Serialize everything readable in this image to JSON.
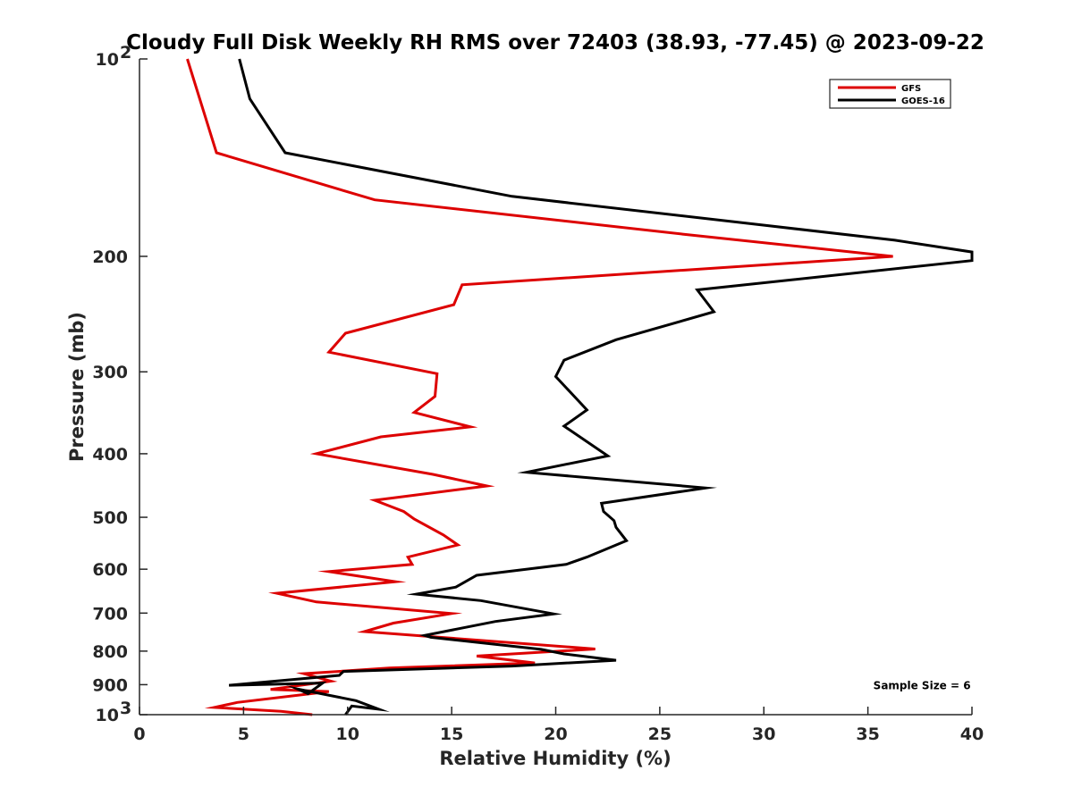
{
  "chart_data": {
    "type": "line",
    "title": "Cloudy Full Disk Weekly RH RMS over 72403 (38.93, -77.45) @ 2023-09-22",
    "xlabel": "Relative Humidity (%)",
    "ylabel": "Pressure (mb)",
    "xlim": [
      0,
      40
    ],
    "ylim": [
      100,
      1000
    ],
    "y_scale": "log",
    "y_reversed": true,
    "x_ticks": [
      {
        "value": 0,
        "label": "0"
      },
      {
        "value": 5,
        "label": "5"
      },
      {
        "value": 10,
        "label": "10"
      },
      {
        "value": 15,
        "label": "15"
      },
      {
        "value": 20,
        "label": "20"
      },
      {
        "value": 25,
        "label": "25"
      },
      {
        "value": 30,
        "label": "30"
      },
      {
        "value": 35,
        "label": "35"
      },
      {
        "value": 40,
        "label": "40"
      }
    ],
    "y_ticks": [
      {
        "value": 100,
        "label": "10",
        "sup": "2"
      },
      {
        "value": 200,
        "label": "200"
      },
      {
        "value": 300,
        "label": "300"
      },
      {
        "value": 400,
        "label": "400"
      },
      {
        "value": 500,
        "label": "500"
      },
      {
        "value": 600,
        "label": "600"
      },
      {
        "value": 700,
        "label": "700"
      },
      {
        "value": 800,
        "label": "800"
      },
      {
        "value": 900,
        "label": "900"
      },
      {
        "value": 1000,
        "label": "10",
        "sup": "3"
      }
    ],
    "grid": false,
    "legend_position": "top-right",
    "series": [
      {
        "name": "GFS",
        "color": "#dd0000",
        "points": [
          [
            2.3,
            100
          ],
          [
            3.7,
            139
          ],
          [
            11.3,
            164
          ],
          [
            26.1,
            185
          ],
          [
            36.2,
            200
          ],
          [
            15.5,
            221
          ],
          [
            15.1,
            237
          ],
          [
            9.9,
            262
          ],
          [
            9.1,
            280
          ],
          [
            14.3,
            302
          ],
          [
            14.2,
            327
          ],
          [
            13.2,
            346
          ],
          [
            15.9,
            364
          ],
          [
            11.6,
            377
          ],
          [
            8.5,
            400
          ],
          [
            14.1,
            430
          ],
          [
            16.7,
            448
          ],
          [
            11.3,
            471
          ],
          [
            12.7,
            490
          ],
          [
            13.2,
            503
          ],
          [
            14.6,
            532
          ],
          [
            15.3,
            551
          ],
          [
            12.9,
            575
          ],
          [
            13.1,
            590
          ],
          [
            9.1,
            605
          ],
          [
            12.3,
            627
          ],
          [
            6.6,
            653
          ],
          [
            8.5,
            673
          ],
          [
            15.0,
            701
          ],
          [
            12.2,
            725
          ],
          [
            10.8,
            747
          ],
          [
            21.9,
            794
          ],
          [
            16.2,
            814
          ],
          [
            19.0,
            834
          ],
          [
            12.0,
            849
          ],
          [
            7.9,
            866
          ],
          [
            9.2,
            889
          ],
          [
            6.3,
            915
          ],
          [
            9.1,
            922
          ],
          [
            4.7,
            958
          ],
          [
            3.6,
            975
          ],
          [
            6.8,
            988
          ],
          [
            8.3,
            1000
          ]
        ]
      },
      {
        "name": "GOES-16",
        "color": "#000000",
        "points": [
          [
            4.8,
            100
          ],
          [
            5.3,
            115
          ],
          [
            7.0,
            139
          ],
          [
            17.9,
            162
          ],
          [
            36.3,
            189
          ],
          [
            40.0,
            197
          ],
          [
            40.0,
            203
          ],
          [
            26.8,
            225
          ],
          [
            27.6,
            243
          ],
          [
            22.9,
            268
          ],
          [
            20.4,
            288
          ],
          [
            20.0,
            305
          ],
          [
            21.5,
            343
          ],
          [
            20.4,
            363
          ],
          [
            22.5,
            403
          ],
          [
            18.6,
            427
          ],
          [
            27.2,
            451
          ],
          [
            22.2,
            476
          ],
          [
            22.3,
            490
          ],
          [
            22.8,
            506
          ],
          [
            22.9,
            518
          ],
          [
            23.4,
            543
          ],
          [
            21.5,
            575
          ],
          [
            20.5,
            590
          ],
          [
            16.2,
            613
          ],
          [
            15.2,
            639
          ],
          [
            13.3,
            655
          ],
          [
            16.4,
            670
          ],
          [
            19.9,
            702
          ],
          [
            17.1,
            721
          ],
          [
            13.7,
            757
          ],
          [
            14.0,
            762
          ],
          [
            19.3,
            795
          ],
          [
            20.4,
            808
          ],
          [
            22.9,
            826
          ],
          [
            17.9,
            843
          ],
          [
            9.8,
            859
          ],
          [
            9.6,
            871
          ],
          [
            4.3,
            902
          ],
          [
            8.8,
            895
          ],
          [
            8.1,
            929
          ],
          [
            7.6,
            914
          ],
          [
            10.4,
            952
          ],
          [
            11.5,
            981
          ],
          [
            10.2,
            970
          ],
          [
            9.9,
            1000
          ]
        ]
      }
    ],
    "annotations": [
      {
        "text": "Sample Size = 6",
        "x": 37.6,
        "y": 900
      }
    ]
  }
}
